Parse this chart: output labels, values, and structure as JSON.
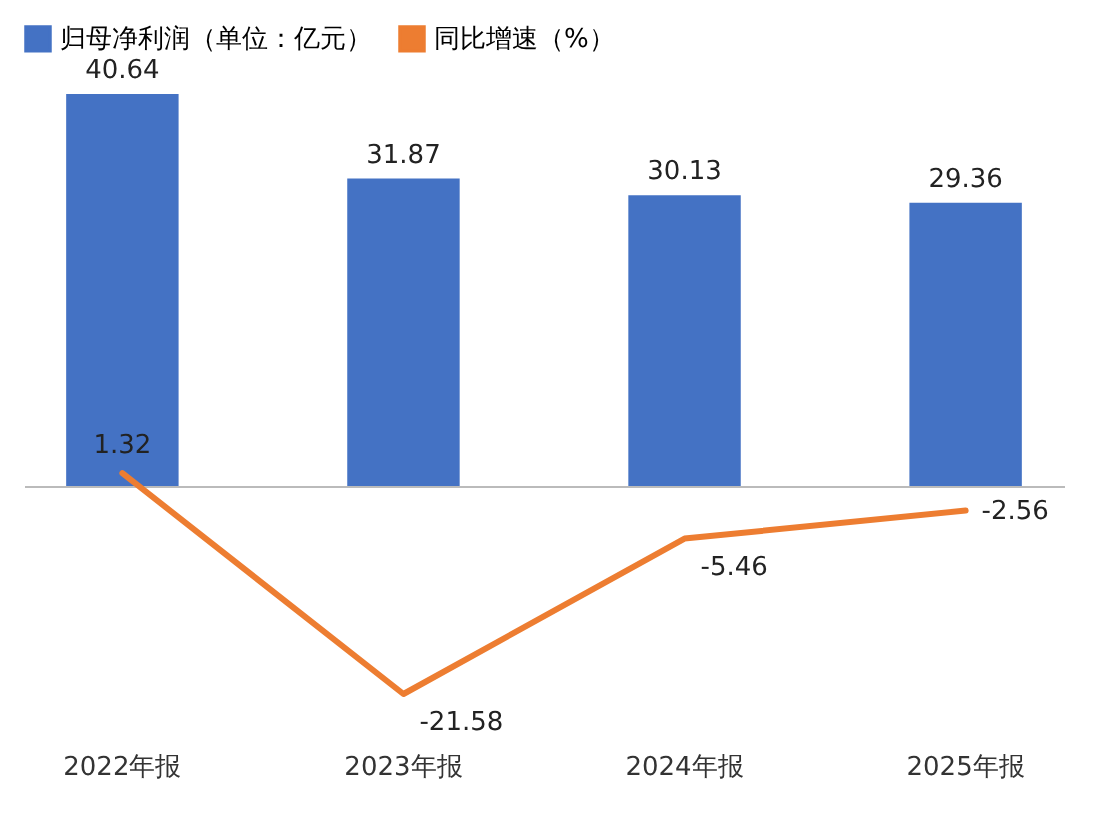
{
  "chart_data": {
    "type": "bar",
    "categories": [
      "2022年报",
      "2023年报",
      "2024年报",
      "2025年报"
    ],
    "series": [
      {
        "name": "归母净利润（单位：亿元）",
        "color": "#4472c4",
        "values": [
          40.64,
          31.87,
          30.13,
          29.36
        ]
      },
      {
        "name": "同比增速（%）",
        "type": "line",
        "color": "#ed7d31",
        "values": [
          1.32,
          -21.58,
          -5.46,
          -2.56
        ]
      }
    ],
    "data_labels": true,
    "tick_labels": "x",
    "grid": false,
    "legend": "top",
    "marker": "none",
    "line_style": "solid"
  }
}
